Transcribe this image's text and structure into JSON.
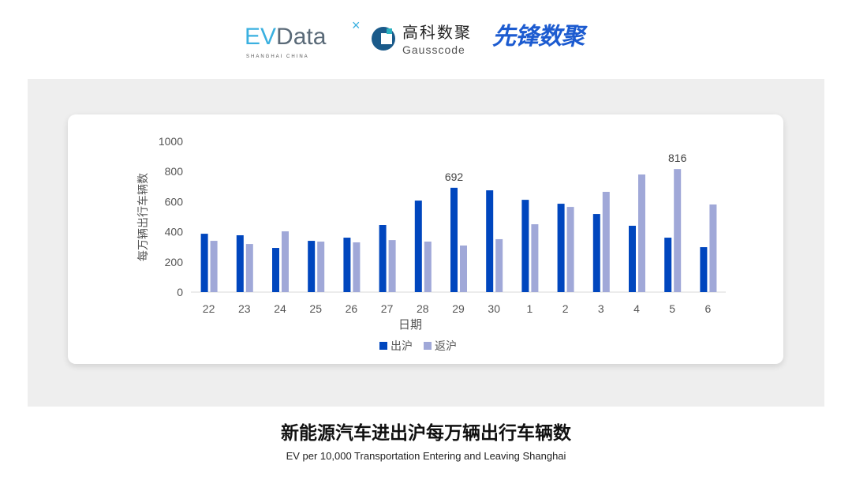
{
  "logos": {
    "evdata": {
      "ev": "EV",
      "rest": "Data",
      "sub": "SHANGHAI CHINA"
    },
    "gausscode": {
      "cn": "高科数聚",
      "en": "Gausscode"
    },
    "xianfeng": "先锋数聚"
  },
  "chart_data": {
    "type": "bar",
    "xlabel": "日期",
    "ylabel": "每万辆出行车辆数",
    "ylim": [
      0,
      1000
    ],
    "yticks": [
      0,
      200,
      400,
      600,
      800,
      1000
    ],
    "grid": false,
    "legend_position": "bottom",
    "categories": [
      "22",
      "23",
      "24",
      "25",
      "26",
      "27",
      "28",
      "29",
      "30",
      "1",
      "2",
      "3",
      "4",
      "5",
      "6"
    ],
    "series": [
      {
        "name": "出沪",
        "color": "#0046be",
        "values": [
          387,
          377,
          293,
          340,
          361,
          445,
          607,
          692,
          675,
          612,
          586,
          518,
          440,
          361,
          298
        ]
      },
      {
        "name": "返沪",
        "color": "#a0a8d8",
        "values": [
          340,
          319,
          403,
          335,
          330,
          345,
          335,
          309,
          351,
          450,
          565,
          665,
          780,
          816,
          581
        ]
      }
    ],
    "annotations": [
      {
        "category": "29",
        "series": "出沪",
        "label": "692"
      },
      {
        "category": "5",
        "series": "返沪",
        "label": "816"
      }
    ]
  },
  "footer": {
    "title": "新能源汽车进出沪每万辆出行车辆数",
    "subtitle": "EV per 10,000 Transportation Entering and Leaving Shanghai"
  }
}
